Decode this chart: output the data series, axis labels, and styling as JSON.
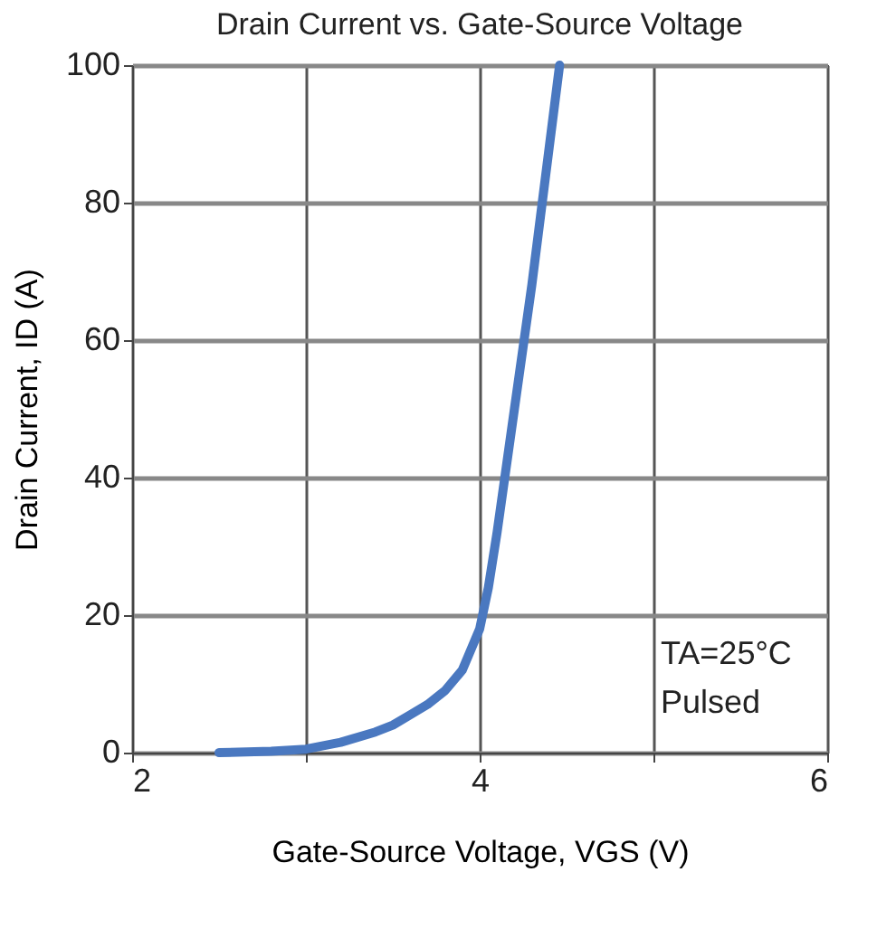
{
  "chart_data": {
    "type": "line",
    "title": "Drain Current vs. Gate-Source Voltage",
    "xlabel": "Gate-Source Voltage, VGS (V)",
    "ylabel": "Drain Current, ID (A)",
    "x": [
      2.5,
      2.8,
      3.0,
      3.2,
      3.4,
      3.5,
      3.6,
      3.7,
      3.8,
      3.9,
      4.0,
      4.05,
      4.1,
      4.15,
      4.2,
      4.25,
      4.3,
      4.35,
      4.4,
      4.46
    ],
    "series": [
      {
        "color": "#4a78c0",
        "values": [
          0,
          0.2,
          0.5,
          1.5,
          3,
          4,
          5.5,
          7,
          9,
          12,
          18,
          24,
          32,
          41,
          50,
          59,
          68,
          78,
          88,
          100
        ]
      }
    ],
    "xlim": [
      2,
      6
    ],
    "xticks": [
      2,
      {
        "value": 3,
        "label": null
      },
      4,
      {
        "value": 5,
        "label": null
      },
      6
    ],
    "ylim": [
      0,
      100
    ],
    "yticks": [
      0,
      20,
      40,
      60,
      80,
      100
    ],
    "grid": true,
    "marker": "none",
    "line_style": "solid",
    "annotations": [
      "TA=25°C",
      "Pulsed"
    ]
  }
}
